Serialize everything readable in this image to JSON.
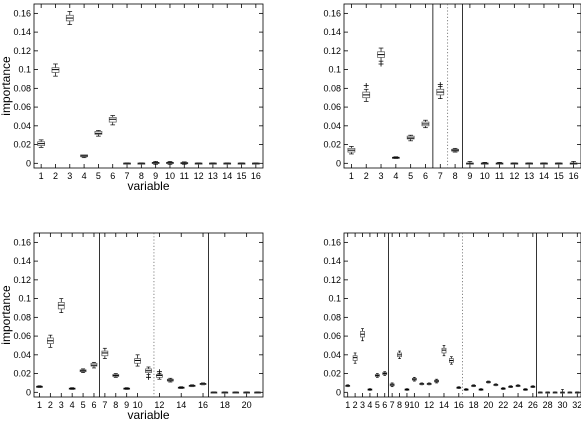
{
  "chart_data": [
    {
      "type": "box",
      "title": "",
      "xlabel": "variable",
      "ylabel": "importance",
      "xlim": [
        0.5,
        16.5
      ],
      "ylim": [
        -0.005,
        0.17
      ],
      "xticks": [
        1,
        2,
        3,
        4,
        5,
        6,
        7,
        8,
        9,
        10,
        11,
        12,
        13,
        14,
        15,
        16
      ],
      "yticks": [
        0,
        0.02,
        0.04,
        0.06,
        0.08,
        0.1,
        0.12,
        0.14,
        0.16
      ],
      "ytick_labels": [
        "0",
        "0.02",
        "0.04",
        "0.06",
        "0.08",
        "0.1",
        "0.12",
        "0.14",
        "0.16"
      ],
      "solid_vlines": [],
      "dotted_vlines": [],
      "boxes": [
        {
          "x": 1,
          "median": 0.021,
          "q1": 0.019,
          "q3": 0.023,
          "lo": 0.017,
          "hi": 0.025,
          "outliers": []
        },
        {
          "x": 2,
          "median": 0.1,
          "q1": 0.097,
          "q3": 0.102,
          "lo": 0.093,
          "hi": 0.106,
          "outliers": []
        },
        {
          "x": 3,
          "median": 0.155,
          "q1": 0.152,
          "q3": 0.158,
          "lo": 0.148,
          "hi": 0.162,
          "outliers": []
        },
        {
          "x": 4,
          "median": 0.008,
          "q1": 0.007,
          "q3": 0.009,
          "lo": 0.006,
          "hi": 0.009,
          "outliers": []
        },
        {
          "x": 5,
          "median": 0.032,
          "q1": 0.031,
          "q3": 0.034,
          "lo": 0.029,
          "hi": 0.035,
          "outliers": []
        },
        {
          "x": 6,
          "median": 0.047,
          "q1": 0.044,
          "q3": 0.049,
          "lo": 0.041,
          "hi": 0.051,
          "outliers": []
        },
        {
          "x": 7,
          "median": 0.0,
          "q1": -0.0003,
          "q3": 0.0003,
          "lo": -0.0005,
          "hi": 0.0005,
          "outliers": []
        },
        {
          "x": 8,
          "median": 0.0,
          "q1": -0.0003,
          "q3": 0.0003,
          "lo": -0.0005,
          "hi": 0.0005,
          "outliers": []
        },
        {
          "x": 9,
          "median": 0.0005,
          "q1": 0.0,
          "q3": 0.001,
          "lo": -0.001,
          "hi": 0.002,
          "outliers": []
        },
        {
          "x": 10,
          "median": 0.0005,
          "q1": 0.0,
          "q3": 0.001,
          "lo": -0.001,
          "hi": 0.002,
          "outliers": []
        },
        {
          "x": 11,
          "median": 0.0003,
          "q1": 0.0,
          "q3": 0.0008,
          "lo": -0.001,
          "hi": 0.0015,
          "outliers": []
        },
        {
          "x": 12,
          "median": 0.0,
          "q1": -0.0003,
          "q3": 0.0003,
          "lo": -0.0005,
          "hi": 0.0005,
          "outliers": []
        },
        {
          "x": 13,
          "median": 0.0,
          "q1": -0.0003,
          "q3": 0.0003,
          "lo": -0.0005,
          "hi": 0.0005,
          "outliers": []
        },
        {
          "x": 14,
          "median": 0.0,
          "q1": -0.0003,
          "q3": 0.0003,
          "lo": -0.0005,
          "hi": 0.0005,
          "outliers": []
        },
        {
          "x": 15,
          "median": 0.0,
          "q1": -0.0003,
          "q3": 0.0003,
          "lo": -0.0005,
          "hi": 0.0005,
          "outliers": []
        },
        {
          "x": 16,
          "median": 0.0,
          "q1": -0.0003,
          "q3": 0.0003,
          "lo": -0.0005,
          "hi": 0.0005,
          "outliers": []
        }
      ]
    },
    {
      "type": "box",
      "title": "",
      "xlabel": "",
      "ylabel": "",
      "xlim": [
        0.5,
        16.5
      ],
      "ylim": [
        -0.005,
        0.17
      ],
      "xticks": [
        1,
        2,
        3,
        4,
        5,
        6,
        7,
        8,
        9,
        10,
        11,
        12,
        13,
        14,
        15,
        16
      ],
      "yticks": [
        0,
        0.02,
        0.04,
        0.06,
        0.08,
        0.1,
        0.12,
        0.14,
        0.16
      ],
      "ytick_labels": [
        "0",
        "0.02",
        "0.04",
        "0.06",
        "0.08",
        "0.1",
        "0.12",
        "0.14",
        "0.16"
      ],
      "solid_vlines": [
        6.5,
        8.5
      ],
      "dotted_vlines": [
        7.5
      ],
      "boxes": [
        {
          "x": 1,
          "median": 0.014,
          "q1": 0.012,
          "q3": 0.016,
          "lo": 0.01,
          "hi": 0.018,
          "outliers": []
        },
        {
          "x": 2,
          "median": 0.073,
          "q1": 0.07,
          "q3": 0.076,
          "lo": 0.066,
          "hi": 0.079,
          "outliers": [
            0.083
          ]
        },
        {
          "x": 3,
          "median": 0.116,
          "q1": 0.113,
          "q3": 0.119,
          "lo": 0.109,
          "hi": 0.123,
          "outliers": [
            0.106
          ]
        },
        {
          "x": 4,
          "median": 0.006,
          "q1": 0.0055,
          "q3": 0.0065,
          "lo": 0.005,
          "hi": 0.007,
          "outliers": []
        },
        {
          "x": 5,
          "median": 0.027,
          "q1": 0.026,
          "q3": 0.029,
          "lo": 0.024,
          "hi": 0.03,
          "outliers": []
        },
        {
          "x": 6,
          "median": 0.042,
          "q1": 0.04,
          "q3": 0.044,
          "lo": 0.038,
          "hi": 0.046,
          "outliers": []
        },
        {
          "x": 7,
          "median": 0.076,
          "q1": 0.073,
          "q3": 0.079,
          "lo": 0.069,
          "hi": 0.082,
          "outliers": [
            0.084
          ]
        },
        {
          "x": 8,
          "median": 0.014,
          "q1": 0.013,
          "q3": 0.015,
          "lo": 0.012,
          "hi": 0.016,
          "outliers": []
        },
        {
          "x": 9,
          "median": 0.0,
          "q1": -0.0003,
          "q3": 0.0003,
          "lo": -0.0005,
          "hi": 0.002,
          "outliers": []
        },
        {
          "x": 10,
          "median": 0.0,
          "q1": -0.0003,
          "q3": 0.0003,
          "lo": -0.0005,
          "hi": 0.001,
          "outliers": []
        },
        {
          "x": 11,
          "median": 0.0,
          "q1": -0.0003,
          "q3": 0.0003,
          "lo": -0.0005,
          "hi": 0.001,
          "outliers": []
        },
        {
          "x": 12,
          "median": 0.0,
          "q1": -0.0003,
          "q3": 0.0003,
          "lo": -0.0005,
          "hi": 0.0005,
          "outliers": []
        },
        {
          "x": 13,
          "median": 0.0,
          "q1": -0.0003,
          "q3": 0.0003,
          "lo": -0.0005,
          "hi": 0.0005,
          "outliers": []
        },
        {
          "x": 14,
          "median": 0.0,
          "q1": -0.0003,
          "q3": 0.0003,
          "lo": -0.0005,
          "hi": 0.0005,
          "outliers": []
        },
        {
          "x": 15,
          "median": 0.0,
          "q1": -0.0003,
          "q3": 0.0003,
          "lo": -0.0005,
          "hi": 0.0005,
          "outliers": []
        },
        {
          "x": 16,
          "median": 0.0,
          "q1": -0.0003,
          "q3": 0.0003,
          "lo": -0.0005,
          "hi": 0.002,
          "outliers": []
        }
      ]
    },
    {
      "type": "box",
      "title": "",
      "xlabel": "variable",
      "ylabel": "importance",
      "xlim": [
        0.5,
        21.5
      ],
      "ylim": [
        -0.005,
        0.17
      ],
      "xticks": [
        1,
        2,
        3,
        4,
        5,
        6,
        7,
        8,
        9,
        10,
        12,
        14,
        16,
        18,
        20
      ],
      "yticks": [
        0,
        0.02,
        0.04,
        0.06,
        0.08,
        0.1,
        0.12,
        0.14,
        0.16
      ],
      "ytick_labels": [
        "0",
        "0.02",
        "0.04",
        "0.06",
        "0.08",
        "0.1",
        "0.12",
        "0.14",
        "0.16"
      ],
      "solid_vlines": [
        6.5,
        16.5
      ],
      "dotted_vlines": [
        11.5
      ],
      "boxes": [
        {
          "x": 1,
          "median": 0.006,
          "q1": 0.0055,
          "q3": 0.0065,
          "lo": 0.005,
          "hi": 0.007,
          "outliers": []
        },
        {
          "x": 2,
          "median": 0.055,
          "q1": 0.052,
          "q3": 0.058,
          "lo": 0.048,
          "hi": 0.061,
          "outliers": []
        },
        {
          "x": 3,
          "median": 0.093,
          "q1": 0.089,
          "q3": 0.096,
          "lo": 0.085,
          "hi": 0.1,
          "outliers": []
        },
        {
          "x": 4,
          "median": 0.004,
          "q1": 0.0035,
          "q3": 0.0045,
          "lo": 0.003,
          "hi": 0.005,
          "outliers": []
        },
        {
          "x": 5,
          "median": 0.023,
          "q1": 0.022,
          "q3": 0.024,
          "lo": 0.021,
          "hi": 0.025,
          "outliers": []
        },
        {
          "x": 6,
          "median": 0.029,
          "q1": 0.028,
          "q3": 0.031,
          "lo": 0.026,
          "hi": 0.032,
          "outliers": []
        },
        {
          "x": 7,
          "median": 0.042,
          "q1": 0.039,
          "q3": 0.044,
          "lo": 0.036,
          "hi": 0.047,
          "outliers": []
        },
        {
          "x": 8,
          "median": 0.018,
          "q1": 0.017,
          "q3": 0.019,
          "lo": 0.016,
          "hi": 0.02,
          "outliers": []
        },
        {
          "x": 9,
          "median": 0.004,
          "q1": 0.0035,
          "q3": 0.0045,
          "lo": 0.003,
          "hi": 0.005,
          "outliers": []
        },
        {
          "x": 10,
          "median": 0.034,
          "q1": 0.031,
          "q3": 0.036,
          "lo": 0.028,
          "hi": 0.04,
          "outliers": []
        },
        {
          "x": 11,
          "median": 0.023,
          "q1": 0.021,
          "q3": 0.025,
          "lo": 0.019,
          "hi": 0.027,
          "outliers": [
            0.016
          ]
        },
        {
          "x": 12,
          "median": 0.018,
          "q1": 0.016,
          "q3": 0.019,
          "lo": 0.014,
          "hi": 0.02,
          "outliers": [
            0.022
          ]
        },
        {
          "x": 13,
          "median": 0.013,
          "q1": 0.012,
          "q3": 0.014,
          "lo": 0.011,
          "hi": 0.015,
          "outliers": []
        },
        {
          "x": 14,
          "median": 0.005,
          "q1": 0.0045,
          "q3": 0.0055,
          "lo": 0.004,
          "hi": 0.006,
          "outliers": []
        },
        {
          "x": 15,
          "median": 0.007,
          "q1": 0.0065,
          "q3": 0.0075,
          "lo": 0.006,
          "hi": 0.008,
          "outliers": []
        },
        {
          "x": 16,
          "median": 0.009,
          "q1": 0.0085,
          "q3": 0.0095,
          "lo": 0.008,
          "hi": 0.01,
          "outliers": []
        },
        {
          "x": 17,
          "median": 0.0,
          "q1": -0.0003,
          "q3": 0.0003,
          "lo": -0.0005,
          "hi": 0.0005,
          "outliers": []
        },
        {
          "x": 18,
          "median": 0.0,
          "q1": -0.0003,
          "q3": 0.0003,
          "lo": -0.0005,
          "hi": 0.0005,
          "outliers": []
        },
        {
          "x": 19,
          "median": 0.0,
          "q1": -0.0003,
          "q3": 0.0003,
          "lo": -0.0005,
          "hi": 0.0005,
          "outliers": []
        },
        {
          "x": 20,
          "median": 0.0,
          "q1": -0.0003,
          "q3": 0.0003,
          "lo": -0.0005,
          "hi": 0.0005,
          "outliers": []
        },
        {
          "x": 21,
          "median": 0.0,
          "q1": -0.0003,
          "q3": 0.0003,
          "lo": -0.0005,
          "hi": 0.0005,
          "outliers": []
        }
      ]
    },
    {
      "type": "box",
      "title": "",
      "xlabel": "",
      "ylabel": "",
      "xlim": [
        0.5,
        32.5
      ],
      "ylim": [
        -0.005,
        0.17
      ],
      "xticks": [
        1,
        2,
        3,
        4,
        5,
        6,
        7,
        8,
        9,
        10,
        12,
        14,
        16,
        18,
        20,
        22,
        24,
        26,
        28,
        30,
        32
      ],
      "yticks": [
        0,
        0.02,
        0.04,
        0.06,
        0.08,
        0.1,
        0.12,
        0.14,
        0.16
      ],
      "ytick_labels": [
        "0",
        "0.02",
        "0.04",
        "0.06",
        "0.08",
        "0.1",
        "0.12",
        "0.14",
        "0.16"
      ],
      "solid_vlines": [
        6.5,
        26.5
      ],
      "dotted_vlines": [
        16.5
      ],
      "boxes": [
        {
          "x": 1,
          "median": 0.007,
          "q1": 0.0065,
          "q3": 0.0075,
          "lo": 0.006,
          "hi": 0.008,
          "outliers": []
        },
        {
          "x": 2,
          "median": 0.037,
          "q1": 0.034,
          "q3": 0.039,
          "lo": 0.031,
          "hi": 0.042,
          "outliers": []
        },
        {
          "x": 3,
          "median": 0.062,
          "q1": 0.059,
          "q3": 0.065,
          "lo": 0.055,
          "hi": 0.068,
          "outliers": []
        },
        {
          "x": 4,
          "median": 0.003,
          "q1": 0.0025,
          "q3": 0.0035,
          "lo": 0.002,
          "hi": 0.004,
          "outliers": []
        },
        {
          "x": 5,
          "median": 0.018,
          "q1": 0.017,
          "q3": 0.019,
          "lo": 0.016,
          "hi": 0.02,
          "outliers": []
        },
        {
          "x": 6,
          "median": 0.02,
          "q1": 0.019,
          "q3": 0.021,
          "lo": 0.018,
          "hi": 0.022,
          "outliers": []
        },
        {
          "x": 7,
          "median": 0.008,
          "q1": 0.007,
          "q3": 0.009,
          "lo": 0.006,
          "hi": 0.01,
          "outliers": []
        },
        {
          "x": 8,
          "median": 0.04,
          "q1": 0.038,
          "q3": 0.042,
          "lo": 0.036,
          "hi": 0.044,
          "outliers": []
        },
        {
          "x": 9,
          "median": 0.003,
          "q1": 0.0025,
          "q3": 0.0035,
          "lo": 0.002,
          "hi": 0.004,
          "outliers": []
        },
        {
          "x": 10,
          "median": 0.014,
          "q1": 0.013,
          "q3": 0.015,
          "lo": 0.012,
          "hi": 0.016,
          "outliers": []
        },
        {
          "x": 11,
          "median": 0.009,
          "q1": 0.0085,
          "q3": 0.0095,
          "lo": 0.008,
          "hi": 0.01,
          "outliers": []
        },
        {
          "x": 12,
          "median": 0.009,
          "q1": 0.0085,
          "q3": 0.0095,
          "lo": 0.008,
          "hi": 0.01,
          "outliers": []
        },
        {
          "x": 13,
          "median": 0.012,
          "q1": 0.011,
          "q3": 0.013,
          "lo": 0.01,
          "hi": 0.014,
          "outliers": []
        },
        {
          "x": 14,
          "median": 0.045,
          "q1": 0.042,
          "q3": 0.047,
          "lo": 0.039,
          "hi": 0.05,
          "outliers": []
        },
        {
          "x": 15,
          "median": 0.034,
          "q1": 0.032,
          "q3": 0.036,
          "lo": 0.03,
          "hi": 0.038,
          "outliers": []
        },
        {
          "x": 16,
          "median": 0.005,
          "q1": 0.0045,
          "q3": 0.0055,
          "lo": 0.004,
          "hi": 0.006,
          "outliers": []
        },
        {
          "x": 17,
          "median": 0.003,
          "q1": 0.0025,
          "q3": 0.0035,
          "lo": 0.002,
          "hi": 0.004,
          "outliers": []
        },
        {
          "x": 18,
          "median": 0.007,
          "q1": 0.0065,
          "q3": 0.0075,
          "lo": 0.006,
          "hi": 0.008,
          "outliers": []
        },
        {
          "x": 19,
          "median": 0.003,
          "q1": 0.0025,
          "q3": 0.0035,
          "lo": 0.002,
          "hi": 0.004,
          "outliers": []
        },
        {
          "x": 20,
          "median": 0.011,
          "q1": 0.0105,
          "q3": 0.0115,
          "lo": 0.01,
          "hi": 0.012,
          "outliers": []
        },
        {
          "x": 21,
          "median": 0.008,
          "q1": 0.0075,
          "q3": 0.0085,
          "lo": 0.007,
          "hi": 0.009,
          "outliers": []
        },
        {
          "x": 22,
          "median": 0.004,
          "q1": 0.0035,
          "q3": 0.0045,
          "lo": 0.003,
          "hi": 0.005,
          "outliers": []
        },
        {
          "x": 23,
          "median": 0.006,
          "q1": 0.0055,
          "q3": 0.0065,
          "lo": 0.005,
          "hi": 0.007,
          "outliers": []
        },
        {
          "x": 24,
          "median": 0.007,
          "q1": 0.0065,
          "q3": 0.0075,
          "lo": 0.006,
          "hi": 0.008,
          "outliers": []
        },
        {
          "x": 25,
          "median": 0.003,
          "q1": 0.0025,
          "q3": 0.0035,
          "lo": 0.002,
          "hi": 0.004,
          "outliers": []
        },
        {
          "x": 26,
          "median": 0.006,
          "q1": 0.0055,
          "q3": 0.0065,
          "lo": 0.005,
          "hi": 0.007,
          "outliers": []
        },
        {
          "x": 27,
          "median": 0.0,
          "q1": -0.0003,
          "q3": 0.0003,
          "lo": -0.0005,
          "hi": 0.0005,
          "outliers": []
        },
        {
          "x": 28,
          "median": 0.0,
          "q1": -0.0003,
          "q3": 0.0003,
          "lo": -0.0005,
          "hi": 0.0005,
          "outliers": []
        },
        {
          "x": 29,
          "median": 0.0,
          "q1": -0.0003,
          "q3": 0.0003,
          "lo": -0.0005,
          "hi": 0.0005,
          "outliers": []
        },
        {
          "x": 30,
          "median": 0.0,
          "q1": -0.0003,
          "q3": 0.0003,
          "lo": -0.0005,
          "hi": 0.003,
          "outliers": []
        },
        {
          "x": 31,
          "median": 0.0,
          "q1": -0.0003,
          "q3": 0.0003,
          "lo": -0.0005,
          "hi": 0.0005,
          "outliers": []
        },
        {
          "x": 32,
          "median": 0.0,
          "q1": -0.0003,
          "q3": 0.0003,
          "lo": -0.0005,
          "hi": 0.0005,
          "outliers": []
        }
      ]
    }
  ]
}
